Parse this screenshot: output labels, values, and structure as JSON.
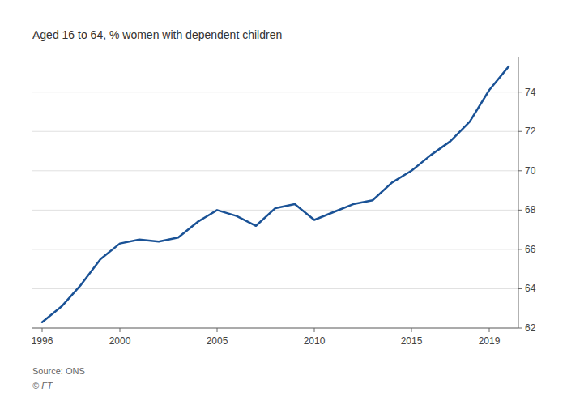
{
  "chart_data": {
    "type": "line",
    "subtitle": "Aged 16 to 64, % women with dependent children",
    "annotations": [
      "Source: ONS",
      "© FT"
    ],
    "x": [
      1996,
      1997,
      1998,
      1999,
      2000,
      2001,
      2002,
      2003,
      2004,
      2005,
      2006,
      2007,
      2008,
      2009,
      2010,
      2011,
      2012,
      2013,
      2014,
      2015,
      2016,
      2017,
      2018,
      2019,
      2020
    ],
    "values": [
      62.3,
      63.1,
      64.2,
      65.5,
      66.3,
      66.5,
      66.4,
      66.6,
      67.4,
      68.0,
      67.7,
      67.2,
      68.1,
      68.3,
      67.5,
      67.9,
      68.3,
      68.5,
      69.4,
      70.0,
      70.8,
      71.5,
      72.5,
      74.1,
      75.3
    ],
    "color": "#1a5296",
    "xlim": [
      1995.5,
      2020.5
    ],
    "ylim": [
      62,
      75.8
    ],
    "xticks": [
      1996,
      2000,
      2005,
      2010,
      2015,
      2019
    ],
    "yticks": [
      62,
      64,
      66,
      68,
      70,
      72,
      74
    ],
    "grid": true
  }
}
